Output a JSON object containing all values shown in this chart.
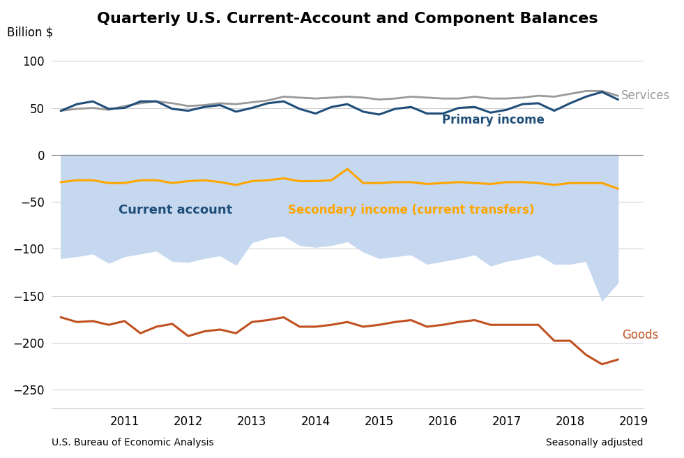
{
  "title": "Quarterly U.S. Current-Account and Component Balances",
  "footnote_left": "U.S. Bureau of Economic Analysis",
  "footnote_right": "Seasonally adjusted",
  "ylim": [
    -270,
    120
  ],
  "yticks": [
    100,
    50,
    0,
    -50,
    -100,
    -150,
    -200,
    -250
  ],
  "x_numeric": [
    2010.0,
    2010.25,
    2010.5,
    2010.75,
    2011.0,
    2011.25,
    2011.5,
    2011.75,
    2012.0,
    2012.25,
    2012.5,
    2012.75,
    2013.0,
    2013.25,
    2013.5,
    2013.75,
    2014.0,
    2014.25,
    2014.5,
    2014.75,
    2015.0,
    2015.25,
    2015.5,
    2015.75,
    2016.0,
    2016.25,
    2016.5,
    2016.75,
    2017.0,
    2017.25,
    2017.5,
    2017.75,
    2018.0,
    2018.25,
    2018.5,
    2018.75
  ],
  "services": [
    47,
    49,
    50,
    48,
    52,
    55,
    57,
    55,
    52,
    53,
    55,
    54,
    56,
    58,
    62,
    61,
    60,
    61,
    62,
    61,
    59,
    60,
    62,
    61,
    60,
    60,
    62,
    60,
    60,
    61,
    63,
    62,
    65,
    68,
    68,
    63
  ],
  "primary_income": [
    47,
    54,
    57,
    49,
    50,
    57,
    57,
    49,
    47,
    51,
    53,
    46,
    50,
    55,
    57,
    49,
    44,
    51,
    54,
    46,
    43,
    49,
    51,
    44,
    44,
    50,
    51,
    45,
    48,
    54,
    55,
    47,
    55,
    62,
    67,
    59
  ],
  "secondary_income": [
    -29,
    -27,
    -27,
    -30,
    -30,
    -27,
    -27,
    -30,
    -28,
    -27,
    -29,
    -32,
    -28,
    -27,
    -25,
    -28,
    -28,
    -27,
    -15,
    -30,
    -30,
    -29,
    -29,
    -31,
    -30,
    -29,
    -30,
    -31,
    -29,
    -29,
    -30,
    -32,
    -30,
    -30,
    -30,
    -36
  ],
  "current_account": [
    -110,
    -108,
    -105,
    -115,
    -108,
    -105,
    -102,
    -113,
    -114,
    -110,
    -107,
    -117,
    -93,
    -88,
    -86,
    -96,
    -98,
    -96,
    -92,
    -103,
    -110,
    -108,
    -106,
    -116,
    -113,
    -110,
    -106,
    -118,
    -113,
    -110,
    -106,
    -116,
    -116,
    -113,
    -155,
    -136
  ],
  "goods": [
    -173,
    -178,
    -177,
    -181,
    -177,
    -190,
    -183,
    -180,
    -193,
    -188,
    -186,
    -190,
    -178,
    -176,
    -173,
    -183,
    -183,
    -181,
    -178,
    -183,
    -181,
    -178,
    -176,
    -183,
    -181,
    -178,
    -176,
    -181,
    -181,
    -181,
    -181,
    -198,
    -198,
    -213,
    -223,
    -218
  ],
  "colors": {
    "services": "#999999",
    "primary_income": "#1F4E79",
    "secondary_income": "#FFA500",
    "goods": "#C05020",
    "current_account_fill": "#C5D8F0"
  },
  "label_colors": {
    "services": "#999999",
    "primary_income": "#1F4E79",
    "secondary_income": "#FFA500",
    "goods": "#C05020",
    "current_account": "#1F4E79"
  }
}
